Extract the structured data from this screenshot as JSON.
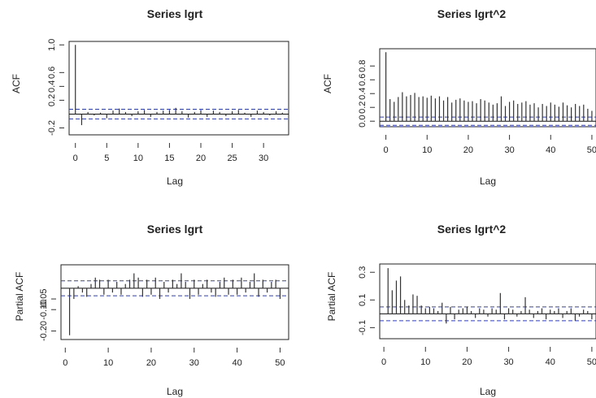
{
  "chart_data": [
    {
      "type": "bar",
      "title": "Series lgrt",
      "xlabel": "Lag",
      "ylabel": "ACF",
      "xlim": [
        -1,
        34
      ],
      "ylim": [
        -0.3,
        1.05
      ],
      "xticks": [
        0,
        5,
        10,
        15,
        20,
        25,
        30
      ],
      "yticks": [
        -0.2,
        0.2,
        0.4,
        0.6,
        1.0
      ],
      "yticklabels": [
        "-0.2",
        "0.2",
        "0.4",
        "0.6",
        "1.0"
      ],
      "ci": 0.07,
      "x": [
        0,
        1,
        2,
        3,
        4,
        5,
        6,
        7,
        8,
        9,
        10,
        11,
        12,
        13,
        14,
        15,
        16,
        17,
        18,
        19,
        20,
        21,
        22,
        23,
        24,
        25,
        26,
        27,
        28,
        29,
        30,
        31,
        32,
        33
      ],
      "values": [
        1.0,
        -0.16,
        0.03,
        -0.02,
        0.02,
        -0.06,
        0.05,
        0.08,
        0.03,
        -0.03,
        0.04,
        0.06,
        -0.04,
        0.03,
        0.05,
        0.06,
        0.09,
        0.04,
        -0.05,
        0.03,
        0.06,
        -0.04,
        0.05,
        0.03,
        -0.03,
        0.04,
        0.06,
        0.02,
        -0.04,
        0.05,
        0.03,
        -0.02,
        0.04,
        0.02
      ]
    },
    {
      "type": "bar",
      "title": "Series lgrt^2",
      "xlabel": "Lag",
      "ylabel": "ACF",
      "xlim": [
        -1.5,
        51
      ],
      "ylim": [
        -0.08,
        1.05
      ],
      "xticks": [
        0,
        10,
        20,
        30,
        40,
        50
      ],
      "xticklabels": [
        "0",
        "10",
        "20",
        "30",
        "40",
        "50"
      ],
      "yticks": [
        0.0,
        0.2,
        0.4,
        0.6,
        0.8
      ],
      "yticklabels": [
        "0.0",
        "0.2",
        "0.4",
        "0.6",
        "0.8"
      ],
      "ci": 0.06,
      "x": [
        0,
        1,
        2,
        3,
        4,
        5,
        6,
        7,
        8,
        9,
        10,
        11,
        12,
        13,
        14,
        15,
        16,
        17,
        18,
        19,
        20,
        21,
        22,
        23,
        24,
        25,
        26,
        27,
        28,
        29,
        30,
        31,
        32,
        33,
        34,
        35,
        36,
        37,
        38,
        39,
        40,
        41,
        42,
        43,
        44,
        45,
        46,
        47,
        48,
        49,
        50
      ],
      "values": [
        1.0,
        0.32,
        0.28,
        0.35,
        0.42,
        0.36,
        0.38,
        0.41,
        0.35,
        0.36,
        0.34,
        0.37,
        0.33,
        0.36,
        0.3,
        0.35,
        0.27,
        0.31,
        0.33,
        0.3,
        0.28,
        0.29,
        0.26,
        0.32,
        0.3,
        0.27,
        0.24,
        0.26,
        0.36,
        0.22,
        0.28,
        0.3,
        0.25,
        0.27,
        0.29,
        0.24,
        0.26,
        0.2,
        0.25,
        0.22,
        0.27,
        0.24,
        0.21,
        0.27,
        0.23,
        0.2,
        0.25,
        0.22,
        0.24,
        0.18,
        0.15
      ]
    },
    {
      "type": "bar",
      "title": "Series lgrt",
      "xlabel": "Lag",
      "ylabel": "Partial ACF",
      "xlim": [
        -1,
        52
      ],
      "ylim": [
        -0.24,
        0.11
      ],
      "xticks": [
        0,
        10,
        20,
        30,
        40,
        50
      ],
      "yticks": [
        -0.2,
        -0.1,
        -0.05
      ],
      "yticklabels": [
        "-0.20",
        "-0.10",
        "-0.05"
      ],
      "ci": 0.035,
      "x": [
        1,
        2,
        3,
        4,
        5,
        6,
        7,
        8,
        9,
        10,
        11,
        12,
        13,
        14,
        15,
        16,
        17,
        18,
        19,
        20,
        21,
        22,
        23,
        24,
        25,
        26,
        27,
        28,
        29,
        30,
        31,
        32,
        33,
        34,
        35,
        36,
        37,
        38,
        39,
        40,
        41,
        42,
        43,
        44,
        45,
        46,
        47,
        48,
        49,
        50
      ],
      "values": [
        -0.22,
        -0.05,
        0.01,
        -0.02,
        -0.04,
        0.02,
        0.05,
        0.04,
        -0.03,
        0.04,
        -0.02,
        0.03,
        -0.03,
        0.02,
        0.04,
        0.07,
        0.05,
        -0.04,
        0.04,
        -0.03,
        0.05,
        -0.05,
        0.03,
        -0.02,
        0.04,
        0.02,
        0.07,
        0.03,
        -0.05,
        0.04,
        -0.03,
        0.02,
        0.04,
        -0.02,
        -0.04,
        0.03,
        0.05,
        -0.03,
        0.04,
        -0.03,
        0.05,
        -0.02,
        0.03,
        0.07,
        -0.04,
        0.04,
        -0.02,
        0.03,
        0.04,
        -0.05
      ]
    },
    {
      "type": "bar",
      "title": "Series lgrt^2",
      "xlabel": "Lag",
      "ylabel": "Partial ACF",
      "xlim": [
        -1,
        51
      ],
      "ylim": [
        -0.18,
        0.36
      ],
      "xticks": [
        0,
        10,
        20,
        30,
        40,
        50
      ],
      "xticklabels": [
        "0",
        "10",
        "20",
        "30",
        "40",
        "50"
      ],
      "yticks": [
        -0.1,
        0.1,
        0.3
      ],
      "yticklabels": [
        "-0.1",
        "0.1",
        "0.3"
      ],
      "ci": 0.05,
      "x": [
        1,
        2,
        3,
        4,
        5,
        6,
        7,
        8,
        9,
        10,
        11,
        12,
        13,
        14,
        15,
        16,
        17,
        18,
        19,
        20,
        21,
        22,
        23,
        24,
        25,
        26,
        27,
        28,
        29,
        30,
        31,
        32,
        33,
        34,
        35,
        36,
        37,
        38,
        39,
        40,
        41,
        42,
        43,
        44,
        45,
        46,
        47,
        48,
        49,
        50
      ],
      "values": [
        0.33,
        0.17,
        0.24,
        0.27,
        0.1,
        0.06,
        0.14,
        0.13,
        0.06,
        0.04,
        0.05,
        0.04,
        0.02,
        0.08,
        -0.07,
        0.05,
        -0.04,
        0.03,
        0.04,
        0.05,
        0.02,
        -0.03,
        0.04,
        0.03,
        -0.02,
        0.04,
        0.03,
        0.15,
        -0.04,
        0.04,
        0.03,
        -0.02,
        0.02,
        0.12,
        0.03,
        -0.03,
        0.02,
        0.04,
        -0.04,
        0.03,
        0.02,
        0.04,
        -0.03,
        0.02,
        0.04,
        -0.05,
        -0.02,
        0.03,
        0.02,
        -0.04
      ]
    }
  ]
}
